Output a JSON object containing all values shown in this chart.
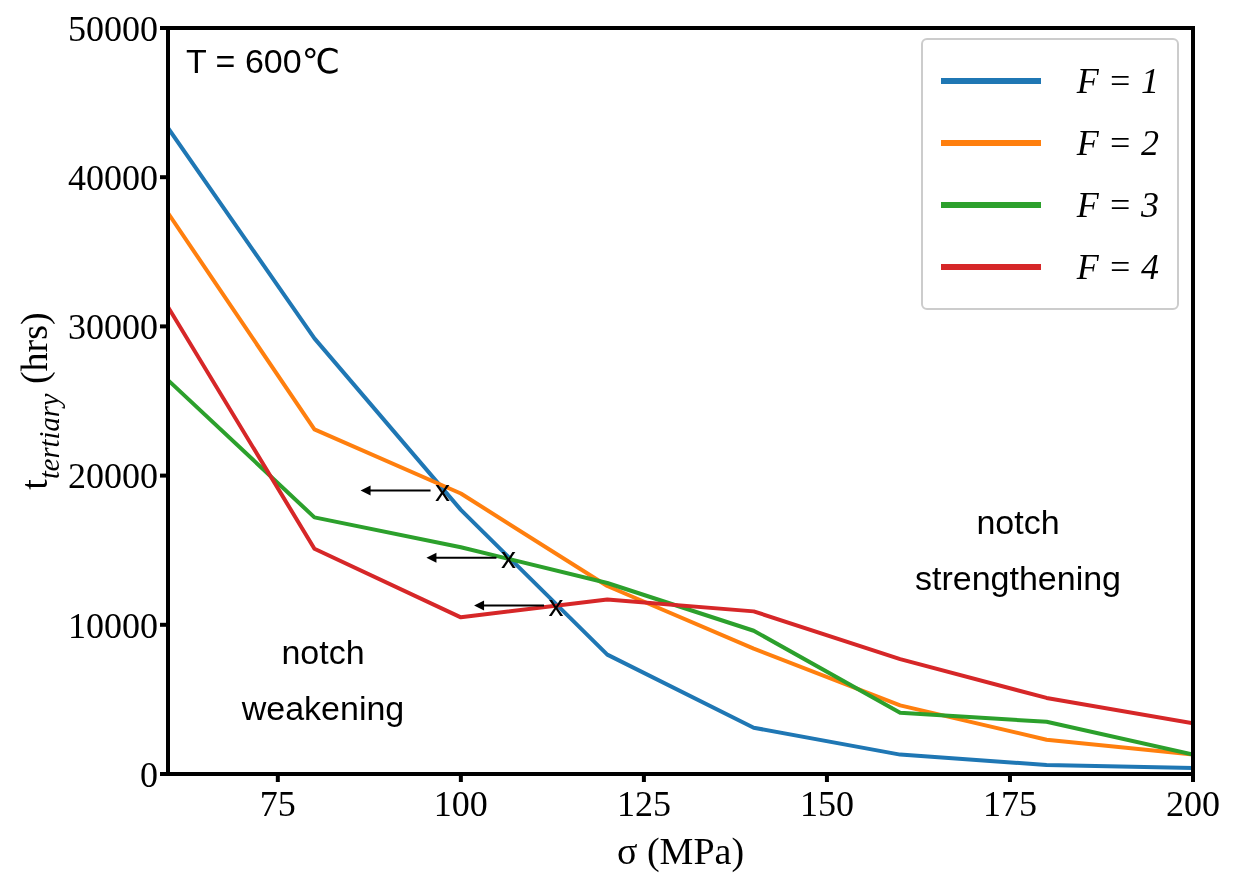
{
  "chart_data": {
    "type": "line",
    "xlabel": "σ (MPa)",
    "ylabel": "t$_{tertiary}$ (hrs)",
    "x": [
      60,
      80,
      100,
      120,
      140,
      160,
      180,
      200
    ],
    "xlim": [
      60,
      200
    ],
    "xticks": [
      75,
      100,
      125,
      150,
      175,
      200
    ],
    "ylim": [
      0,
      50000
    ],
    "yticks": [
      0,
      10000,
      20000,
      30000,
      40000,
      50000
    ],
    "grid": false,
    "legend": "top right",
    "marker": "none",
    "line_style": "solid",
    "series": [
      {
        "name": "F = 1",
        "color": "#1f77b4",
        "values": [
          43300,
          29200,
          17700,
          8000,
          3100,
          1300,
          600,
          400
        ]
      },
      {
        "name": "F = 2",
        "color": "#ff7f0e",
        "values": [
          37600,
          23100,
          18800,
          12600,
          8400,
          4600,
          2300,
          1300
        ]
      },
      {
        "name": "F = 3",
        "color": "#2ca02c",
        "values": [
          26400,
          17200,
          15200,
          12800,
          9600,
          4100,
          3500,
          1300
        ]
      },
      {
        "name": "F = 4",
        "color": "#d62728",
        "values": [
          31300,
          15100,
          10500,
          11700,
          10900,
          7700,
          5100,
          3400
        ]
      }
    ],
    "annotations": [
      "T = 600℃",
      "notch\nweakening",
      "notch\nstrengthening",
      {
        "text": "x",
        "x": 97.5,
        "y": 19000
      },
      {
        "text": "x",
        "x": 106.5,
        "y": 14500
      },
      {
        "text": "x",
        "x": 113,
        "y": 11300
      }
    ]
  }
}
